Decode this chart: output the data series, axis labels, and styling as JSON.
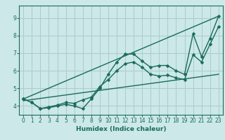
{
  "xlabel": "Humidex (Indice chaleur)",
  "bg_color": "#cce8e8",
  "grid_color": "#aacccc",
  "line_color": "#1a6b5a",
  "xlim": [
    -0.5,
    23.5
  ],
  "ylim": [
    3.5,
    9.7
  ],
  "xticks": [
    0,
    1,
    2,
    3,
    4,
    5,
    6,
    7,
    8,
    9,
    10,
    11,
    12,
    13,
    14,
    15,
    16,
    17,
    18,
    19,
    20,
    21,
    22,
    23
  ],
  "yticks": [
    4,
    5,
    6,
    7,
    8,
    9
  ],
  "line1_x": [
    0,
    1,
    2,
    3,
    4,
    5,
    6,
    7,
    8,
    9,
    10,
    11,
    12,
    13,
    14,
    15,
    16,
    17,
    18,
    19,
    20,
    21,
    22,
    23
  ],
  "line1_y": [
    4.4,
    4.2,
    3.85,
    3.9,
    4.0,
    4.1,
    4.0,
    3.85,
    4.4,
    5.0,
    5.8,
    6.5,
    6.95,
    6.95,
    6.55,
    6.2,
    6.3,
    6.3,
    6.0,
    5.8,
    8.1,
    6.8,
    7.85,
    9.1
  ],
  "line2_x": [
    0,
    1,
    2,
    3,
    4,
    5,
    6,
    7,
    8,
    9,
    10,
    11,
    12,
    13,
    14,
    15,
    16,
    17,
    18,
    19,
    20,
    21,
    22,
    23
  ],
  "line2_y": [
    4.4,
    4.2,
    3.85,
    3.95,
    4.05,
    4.2,
    4.15,
    4.35,
    4.5,
    5.1,
    5.5,
    6.0,
    6.4,
    6.5,
    6.2,
    5.8,
    5.7,
    5.75,
    5.6,
    5.5,
    6.9,
    6.5,
    7.5,
    8.5
  ],
  "line3_x": [
    0,
    23
  ],
  "line3_y": [
    4.4,
    9.1
  ],
  "line4_x": [
    0,
    23
  ],
  "line4_y": [
    4.3,
    5.8
  ],
  "marker_size": 2.5,
  "line_width": 1.0,
  "tick_fontsize": 5.5,
  "xlabel_fontsize": 6.5
}
